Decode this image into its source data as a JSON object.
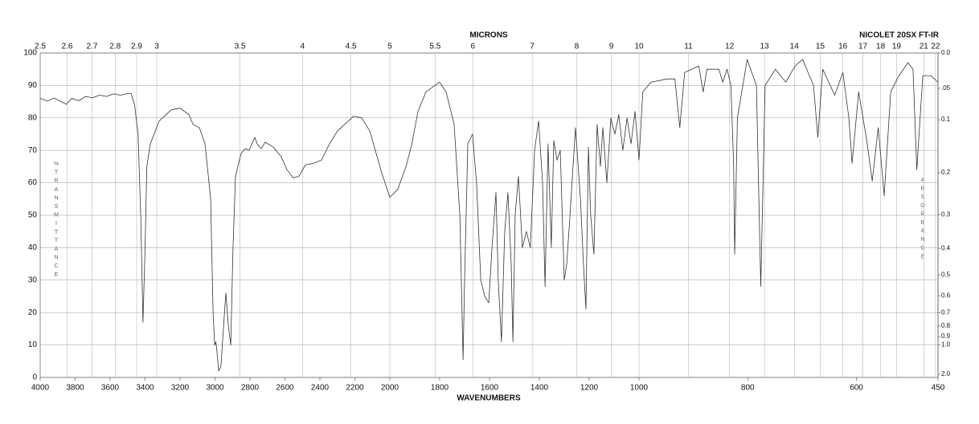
{
  "chart_data": {
    "type": "line",
    "title": "NICOLET 20SX FT-IR",
    "x_label": "WAVENUMBERS",
    "x2_label": "MICRONS",
    "y_label": "%TRANSMITTANCE",
    "y2_label": "ABSORBANCE",
    "color": "#333333",
    "grid": true,
    "xlim": [
      4000,
      450
    ],
    "xticks": [
      4000,
      3800,
      3600,
      3400,
      3200,
      3000,
      2800,
      2600,
      2400,
      2200,
      2000,
      1800,
      1600,
      1400,
      1200,
      1000,
      800,
      600,
      450
    ],
    "x2ticks": [
      2.5,
      2.6,
      2.7,
      2.8,
      2.9,
      3,
      3.5,
      4,
      4.5,
      5,
      5.5,
      6,
      7,
      8,
      9,
      10,
      11,
      12,
      13,
      14,
      15,
      16,
      17,
      18,
      19,
      21,
      22
    ],
    "ylim": [
      0,
      100
    ],
    "yticks": [
      0,
      10,
      20,
      30,
      40,
      50,
      60,
      70,
      80,
      90,
      100
    ],
    "y2ticks": [
      {
        "value": 0,
        "label": "0.0"
      },
      {
        "value": 0.05,
        "label": ".05"
      },
      0.1,
      0.2,
      0.3,
      0.4,
      0.5,
      0.6,
      0.7,
      0.8,
      0.9,
      {
        "value": 1,
        "label": "1.0"
      },
      {
        "value": 2,
        "label": "2.0"
      }
    ],
    "x": [
      4000,
      3960,
      3920,
      3880,
      3850,
      3820,
      3780,
      3740,
      3700,
      3660,
      3620,
      3580,
      3540,
      3500,
      3480,
      3460,
      3440,
      3425,
      3412,
      3400,
      3390,
      3370,
      3320,
      3250,
      3200,
      3149,
      3126,
      3090,
      3057,
      3025,
      3011,
      3002,
      2995,
      2989,
      2979,
      2966,
      2952,
      2938,
      2924,
      2910,
      2897,
      2883,
      2851,
      2828,
      2805,
      2772,
      2759,
      2736,
      2713,
      2667,
      2621,
      2588,
      2552,
      2520,
      2483,
      2437,
      2391,
      2345,
      2299,
      2207,
      2161,
      2115,
      2046,
      2000,
      1968,
      1935,
      1913,
      1887,
      1855,
      1800,
      1774,
      1742,
      1719,
      1706,
      1700,
      1687,
      1668,
      1652,
      1635,
      1619,
      1603,
      1590,
      1574,
      1565,
      1552,
      1539,
      1526,
      1513,
      1506,
      1497,
      1484,
      1468,
      1452,
      1436,
      1419,
      1403,
      1387,
      1377,
      1365,
      1352,
      1342,
      1329,
      1316,
      1300,
      1290,
      1277,
      1255,
      1235,
      1223,
      1213,
      1203,
      1194,
      1181,
      1168,
      1155,
      1145,
      1129,
      1113,
      1097,
      1081,
      1065,
      1048,
      1032,
      1016,
      1000,
      993,
      978,
      948,
      934,
      925,
      916,
      890,
      882,
      875,
      853,
      846,
      838,
      831,
      826,
      824,
      819,
      801,
      784,
      776,
      768,
      749,
      730,
      713,
      699,
      679,
      671,
      662,
      640,
      625,
      614,
      608,
      596,
      581,
      571,
      560,
      549,
      537,
      522,
      505,
      496,
      489,
      478,
      463,
      450
    ],
    "values": [
      86,
      85.2,
      86.1,
      85,
      84.2,
      86,
      85.3,
      86.6,
      86.2,
      87,
      86.6,
      87.4,
      87,
      87.5,
      87.5,
      84,
      75,
      50,
      17,
      40,
      65,
      72,
      79,
      82.5,
      83,
      81,
      78,
      77,
      72,
      55,
      20,
      10,
      11,
      8,
      2,
      3.5,
      15,
      26,
      16,
      10,
      40,
      62,
      69,
      70.5,
      70,
      74,
      72,
      70.5,
      72.5,
      71,
      68,
      64,
      61.5,
      62,
      65.5,
      66,
      67,
      72,
      76,
      80.5,
      80,
      76,
      63,
      55.5,
      58,
      65,
      71.5,
      82,
      88,
      91,
      88,
      78,
      50,
      5.5,
      30,
      72,
      75,
      60,
      30,
      25,
      23,
      40,
      57,
      30,
      11,
      45,
      57,
      35,
      11,
      50,
      62,
      40,
      45,
      40,
      70,
      79,
      60,
      28,
      72,
      40,
      73,
      67,
      70,
      30,
      35,
      50,
      77,
      55,
      35,
      21,
      71,
      50,
      38,
      78,
      65,
      77,
      60,
      80,
      75,
      81,
      70,
      80,
      72,
      82,
      67,
      88,
      91,
      92,
      92,
      77,
      94,
      96,
      88,
      95,
      95,
      91,
      95,
      90,
      66,
      38,
      80,
      98,
      90,
      28,
      90,
      95,
      91,
      96,
      98,
      90,
      74,
      95,
      87,
      94,
      80,
      66,
      88,
      73,
      60.5,
      77,
      56,
      88,
      93,
      97,
      95,
      64,
      93,
      93,
      91
    ]
  }
}
